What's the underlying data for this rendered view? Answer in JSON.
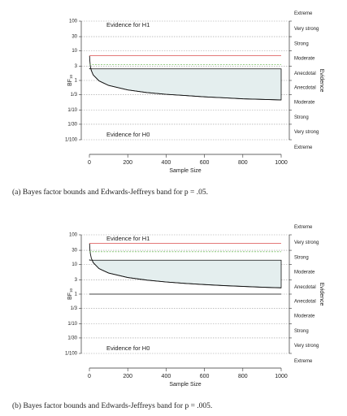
{
  "chart_data": [
    {
      "type": "line",
      "caption": "(a) Bayes factor bounds and Edwards-Jeffreys band for p = .05.",
      "ylabel": "BF",
      "ylabel_sub": "10",
      "xlabel": "Sample Size",
      "evidence_title": "Evidence",
      "evidence_labels": [
        "Extreme",
        "Very strong",
        "Strong",
        "Moderate",
        "Anecdotal",
        "Anecdotal",
        "Moderate",
        "Strong",
        "Very strong",
        "Extreme"
      ],
      "annotations": [
        "Evidence for H1",
        "Evidence for H0"
      ],
      "ylog": true,
      "ylim": [
        0.01,
        100
      ],
      "yticks": [
        100,
        30,
        10,
        3,
        1,
        {
          "value": 0.3333,
          "label": "1/3"
        },
        {
          "value": 0.1,
          "label": "1/10"
        },
        {
          "value": 0.0333,
          "label": "1/30"
        },
        {
          "value": 0.01,
          "label": "1/100"
        }
      ],
      "xlim": [
        0,
        1000
      ],
      "xticks": [
        0,
        200,
        400,
        600,
        800,
        1000
      ],
      "grid": true,
      "hlines": [
        {
          "value": 6.83,
          "color": "#e06666",
          "style": "solid"
        },
        {
          "value": 3.4,
          "color": "#8cc97a",
          "style": "dashed"
        }
      ],
      "band": {
        "upper": 2.46,
        "fill": "#e4eeee",
        "x": [
          1,
          2,
          5,
          10,
          20,
          50,
          100,
          200,
          300,
          400,
          500,
          600,
          700,
          800,
          900,
          1000
        ],
        "lower": [
          6.83,
          4.83,
          3.05,
          2.16,
          1.53,
          0.97,
          0.68,
          0.48,
          0.39,
          0.34,
          0.31,
          0.28,
          0.26,
          0.24,
          0.23,
          0.22
        ]
      }
    },
    {
      "type": "line",
      "caption": "(b) Bayes factor bounds and Edwards-Jeffreys band for p = .005.",
      "ylabel": "BF",
      "ylabel_sub": "10",
      "xlabel": "Sample Size",
      "evidence_title": "Evidence",
      "evidence_labels": [
        "Extreme",
        "Very strong",
        "Strong",
        "Moderate",
        "Anecdotal",
        "Anecdotal",
        "Moderate",
        "Strong",
        "Very strong",
        "Extreme"
      ],
      "annotations": [
        "Evidence for H1",
        "Evidence for H0"
      ],
      "ylog": true,
      "ylim": [
        0.01,
        100
      ],
      "yticks": [
        100,
        30,
        10,
        3,
        1,
        {
          "value": 0.3333,
          "label": "1/3"
        },
        {
          "value": 0.1,
          "label": "1/10"
        },
        {
          "value": 0.0333,
          "label": "1/30"
        },
        {
          "value": 0.01,
          "label": "1/100"
        }
      ],
      "xlim": [
        0,
        1000
      ],
      "xticks": [
        0,
        200,
        400,
        600,
        800,
        1000
      ],
      "grid": true,
      "hlines": [
        {
          "value": 51.4,
          "color": "#e06666",
          "style": "solid"
        },
        {
          "value": 27,
          "color": "#8cc97a",
          "style": "dashed"
        },
        {
          "value": 1,
          "color": "#444444",
          "style": "solid"
        }
      ],
      "band": {
        "upper": 13.9,
        "fill": "#e4eeee",
        "x": [
          1,
          2,
          5,
          10,
          20,
          50,
          100,
          200,
          300,
          400,
          500,
          600,
          700,
          800,
          900,
          1000
        ],
        "lower": [
          51.4,
          36.3,
          23.0,
          16.3,
          11.5,
          7.27,
          5.14,
          3.63,
          2.97,
          2.57,
          2.3,
          2.1,
          1.94,
          1.82,
          1.71,
          1.63
        ]
      }
    }
  ]
}
